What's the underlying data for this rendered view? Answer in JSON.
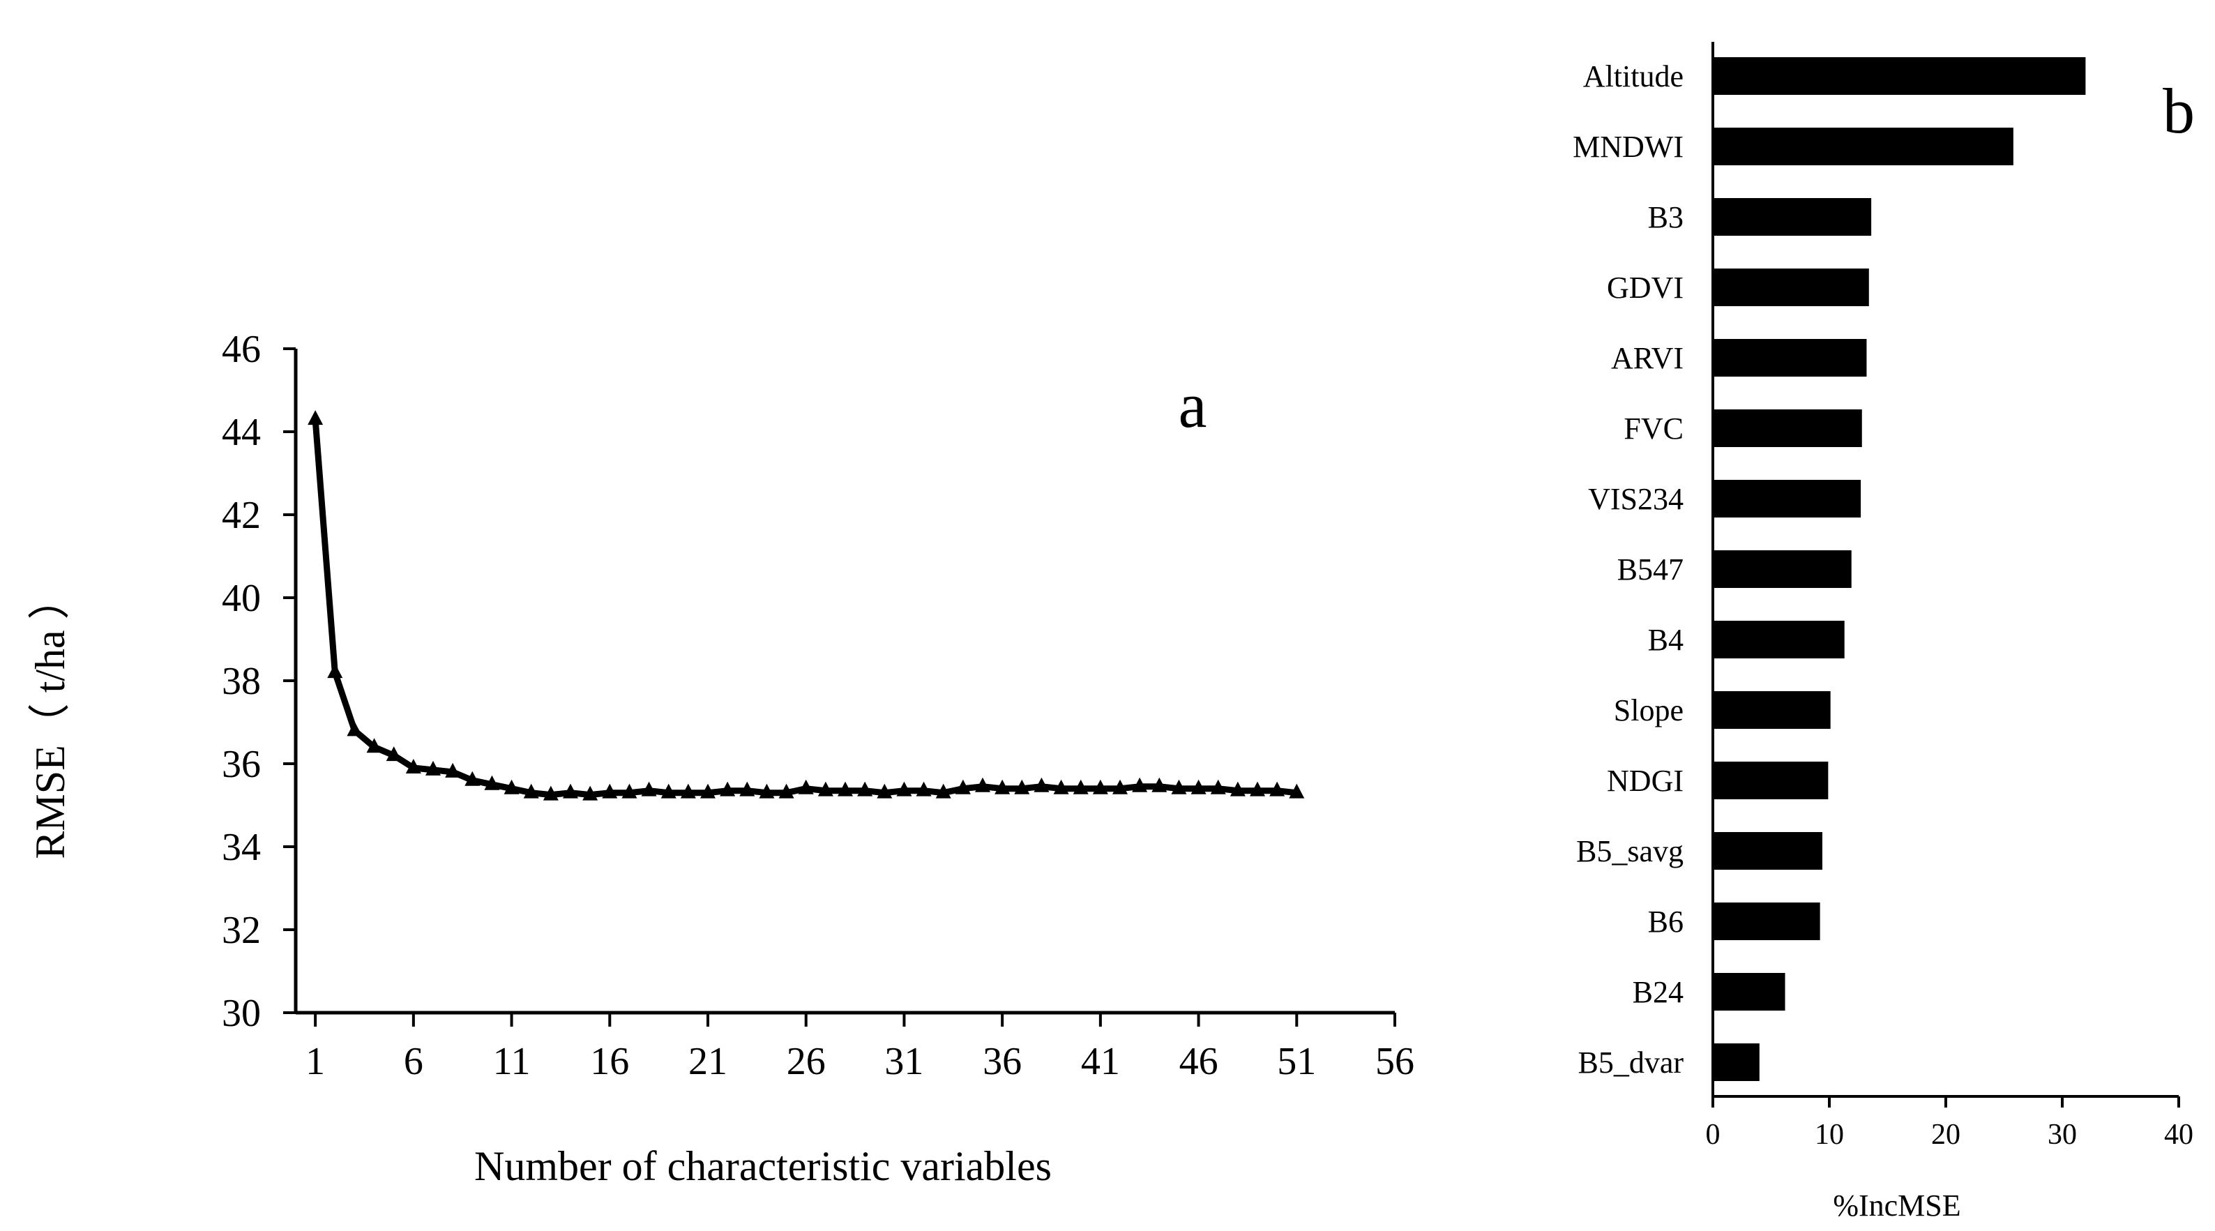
{
  "chart_data": [
    {
      "panel": "a",
      "type": "line",
      "title": "",
      "xlabel": "Number of characteristic variables",
      "ylabel": "RMSE（ t/ha ）",
      "xlim": [
        0,
        56
      ],
      "ylim": [
        30,
        46
      ],
      "xticks": [
        "1",
        "6",
        "11",
        "16",
        "21",
        "26",
        "31",
        "36",
        "41",
        "46",
        "51",
        "56"
      ],
      "yticks": [
        "30",
        "32",
        "34",
        "36",
        "38",
        "40",
        "42",
        "44",
        "46"
      ],
      "marker": "triangle",
      "color": "#000000",
      "grid": false,
      "legend": "none",
      "x": [
        1,
        2,
        3,
        4,
        5,
        6,
        7,
        8,
        9,
        10,
        11,
        12,
        13,
        14,
        15,
        16,
        17,
        18,
        19,
        20,
        21,
        22,
        23,
        24,
        25,
        26,
        27,
        28,
        29,
        30,
        31,
        32,
        33,
        34,
        35,
        36,
        37,
        38,
        39,
        40,
        41,
        42,
        43,
        44,
        45,
        46,
        47,
        48,
        49,
        50,
        51
      ],
      "y": [
        44.3,
        38.2,
        36.8,
        36.4,
        36.2,
        35.9,
        35.85,
        35.8,
        35.6,
        35.5,
        35.4,
        35.3,
        35.25,
        35.3,
        35.25,
        35.3,
        35.3,
        35.35,
        35.3,
        35.3,
        35.3,
        35.35,
        35.35,
        35.3,
        35.3,
        35.4,
        35.35,
        35.35,
        35.35,
        35.3,
        35.35,
        35.35,
        35.3,
        35.4,
        35.45,
        35.4,
        35.4,
        35.45,
        35.4,
        35.4,
        35.4,
        35.4,
        35.45,
        35.45,
        35.4,
        35.4,
        35.4,
        35.35,
        35.35,
        35.35,
        35.3
      ]
    },
    {
      "panel": "b",
      "type": "bar",
      "orientation": "horizontal",
      "title": "",
      "xlabel": "%IncMSE",
      "ylabel": "",
      "xlim": [
        0,
        40
      ],
      "xticks": [
        "0",
        "10",
        "20",
        "30",
        "40"
      ],
      "color": "#000000",
      "grid": false,
      "legend": "none",
      "categories": [
        "Altitude",
        "MNDWI",
        "B3",
        "GDVI",
        "ARVI",
        "FVC",
        "VIS234",
        "B547",
        "B4",
        "Slope",
        "NDGI",
        "B5_savg",
        "B6",
        "B24",
        "B5_dvar"
      ],
      "values": [
        32.0,
        25.8,
        13.6,
        13.4,
        13.2,
        12.8,
        12.7,
        11.9,
        11.3,
        10.1,
        9.9,
        9.4,
        9.2,
        6.2,
        4.0
      ]
    }
  ]
}
